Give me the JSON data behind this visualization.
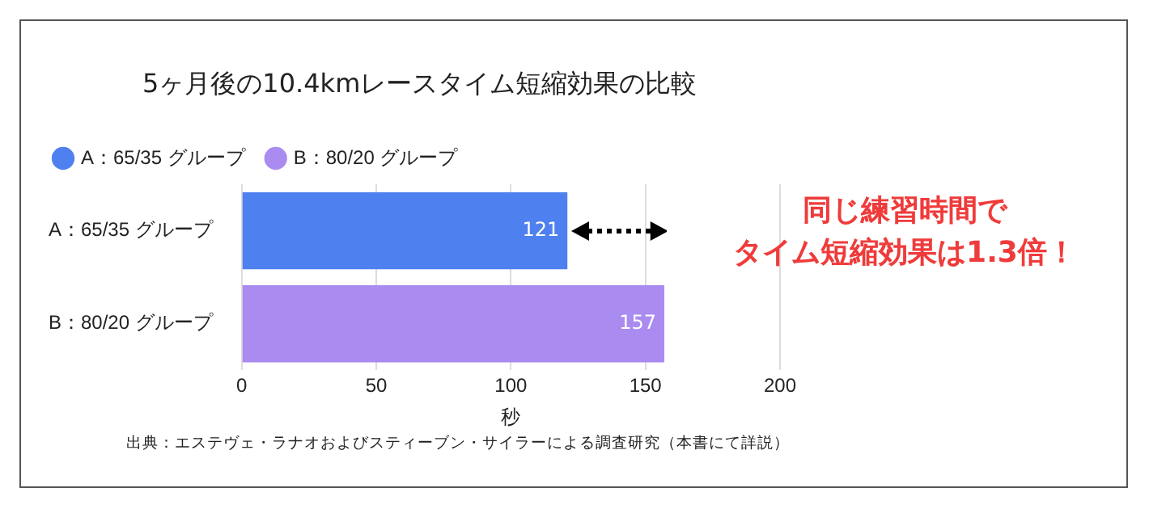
{
  "chart_data": {
    "type": "bar",
    "orientation": "horizontal",
    "title": "5ヶ月後の10.4kmレースタイム短縮効果の比較",
    "categories": [
      "A：65/35 グループ",
      "B：80/20 グループ"
    ],
    "series": [
      {
        "name": "A：65/35 グループ",
        "color": "#4f80ef",
        "values": [
          121,
          null
        ]
      },
      {
        "name": "B：80/20 グループ",
        "color": "#aa8bf0",
        "values": [
          null,
          157
        ]
      }
    ],
    "xlabel": "秒",
    "xlim": [
      0,
      200
    ],
    "xticks": [
      0,
      50,
      100,
      150,
      200
    ],
    "grid": "x",
    "legend": "top left",
    "data_labels": true,
    "annotations": [
      "同じ練習時間で",
      "タイム短縮効果は1.3倍！",
      "出典：エステヴェ・ラナオおよびスティーブン・サイラーによる調査研究（本書にて詳説）"
    ]
  }
}
